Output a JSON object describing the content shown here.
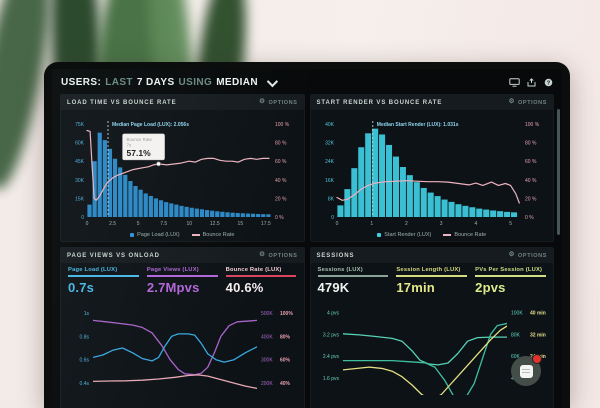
{
  "header": {
    "segments": [
      {
        "text": "USERS:"
      },
      {
        "text": "LAST"
      },
      {
        "text": "7 DAYS"
      },
      {
        "text": "USING"
      },
      {
        "text": "MEDIAN"
      }
    ]
  },
  "options_label": "OPTIONS",
  "gear_char": "⚙",
  "colors": {
    "dashboard_bg": "#07090b",
    "panel_bg": "#0d1216",
    "bar_blue": "#2f93d6",
    "bar_cyan": "#3ecfe3",
    "bounce_pink": "#edb3bf",
    "purple": "#b266d9",
    "yellow": "#e3e084",
    "teal": "#56d1b6",
    "red_badge": "#e3312e"
  },
  "metrics": {
    "pageviews": [
      {
        "label": "Page Load (LUX)",
        "value": "0.7s",
        "label_color": "#49b7e6",
        "value_color": "#49b7e6",
        "bar_color": "#49b7e6"
      },
      {
        "label": "Page Views (LUX)",
        "value": "2.7Mpvs",
        "label_color": "#b266d9",
        "value_color": "#b266d9",
        "bar_color": "#b266d9"
      },
      {
        "label": "Bounce Rate (LUX)",
        "value": "40.6%",
        "label_color": "#f3ccd4",
        "value_color": "#f6edef",
        "bar_color": "#d94560"
      }
    ],
    "sessions": [
      {
        "label": "Sessions (LUX)",
        "value": "479K",
        "label_color": "#a9bfb2",
        "value_color": "#eef4f0",
        "bar_color": "#8ba396"
      },
      {
        "label": "Session Length (LUX)",
        "value": "17min",
        "label_color": "#d6d97e",
        "value_color": "#e6e88a",
        "bar_color": "#d6d97e"
      },
      {
        "label": "PVs Per Session (LUX)",
        "value": "2pvs",
        "label_color": "#cfdd85",
        "value_color": "#dcea8c",
        "bar_color": "#cfdd85"
      }
    ]
  },
  "chart_data": [
    {
      "id": "load_time",
      "type": "bar+line",
      "title": "LOAD TIME VS BOUNCE RATE",
      "bar_color": "#2f93d6",
      "line_color": "#edb3bf",
      "axis_left_color": "#53aede",
      "axis_right_color": "#e79fb0",
      "x_start": 0,
      "x_step": 0.5,
      "x_max": 18,
      "bars_k": [
        10,
        45,
        68,
        62,
        55,
        47,
        40,
        34,
        29,
        25,
        22,
        19,
        17,
        15,
        13.5,
        12,
        11,
        10,
        9,
        8.2,
        7.5,
        6.8,
        6.2,
        5.6,
        5.1,
        4.6,
        4.2,
        3.8,
        3.5,
        3.2,
        3,
        2.8,
        2.6,
        2.4,
        2.3,
        2.2
      ],
      "line_pct": [
        [
          0,
          93
        ],
        [
          0.3,
          92
        ],
        [
          0.5,
          55
        ],
        [
          0.7,
          20
        ],
        [
          0.9,
          18
        ],
        [
          1.2,
          22
        ],
        [
          1.6,
          30
        ],
        [
          2,
          37
        ],
        [
          2.5,
          42
        ],
        [
          3,
          45
        ],
        [
          3.5,
          47
        ],
        [
          4,
          49
        ],
        [
          4.5,
          51
        ],
        [
          5,
          52
        ],
        [
          5.5,
          53
        ],
        [
          6,
          54
        ],
        [
          6.5,
          56
        ],
        [
          7,
          57.1
        ],
        [
          7.8,
          56
        ],
        [
          8.5,
          57
        ],
        [
          9.2,
          58
        ],
        [
          10,
          60
        ],
        [
          10.6,
          59
        ],
        [
          11.2,
          62
        ],
        [
          11.8,
          63
        ],
        [
          12.4,
          63
        ],
        [
          13,
          61
        ],
        [
          13.6,
          60
        ],
        [
          14.2,
          60
        ],
        [
          14.8,
          59
        ],
        [
          15.4,
          62
        ],
        [
          16,
          63
        ],
        [
          16.6,
          62
        ],
        [
          17.2,
          63
        ],
        [
          17.8,
          63
        ]
      ],
      "y_left_ticks": [
        "75K",
        "60K",
        "45K",
        "30K",
        "15K",
        "0"
      ],
      "y_left_max": 75,
      "y_right_ticks": [
        "100 %",
        "80 %",
        "60 %",
        "40 %",
        "20 %",
        "0 %"
      ],
      "x_ticks": [
        "0",
        "2.5",
        "5",
        "7.5",
        "10",
        "12.5",
        "15",
        "17.5"
      ],
      "median": {
        "x": 2.056,
        "label": "Median Page Load (LUX): 2.056s"
      },
      "tooltip": {
        "x": 7,
        "pct": 57.1,
        "label_lines": [
          "Bounce Rate",
          "7s"
        ],
        "value": "57.1%"
      },
      "legend": [
        {
          "label": "Page Load (LUX)",
          "color": "#2f93d6",
          "type": "square"
        },
        {
          "label": "Bounce Rate",
          "color": "#edb3bf",
          "type": "line"
        }
      ]
    },
    {
      "id": "start_render",
      "type": "bar+line",
      "title": "START RENDER VS BOUNCE RATE",
      "bar_color": "#3ecfe3",
      "line_color": "#edb3bf",
      "axis_left_color": "#4fc8dc",
      "axis_right_color": "#e79fb0",
      "x_start": 0,
      "x_step": 0.2,
      "x_max": 5.3,
      "bars_k": [
        5,
        12,
        21,
        30,
        36,
        38,
        35.5,
        31,
        26,
        21.5,
        18,
        15,
        12.5,
        10.5,
        9,
        7.5,
        6.5,
        5.5,
        4.8,
        4.2,
        3.6,
        3.2,
        2.8,
        2.5,
        2.2,
        2
      ],
      "line_pct": [
        [
          0,
          21
        ],
        [
          0.15,
          18
        ],
        [
          0.3,
          19
        ],
        [
          0.5,
          24
        ],
        [
          0.7,
          30
        ],
        [
          0.9,
          34
        ],
        [
          1.1,
          36.5
        ],
        [
          1.4,
          38
        ],
        [
          1.7,
          38.5
        ],
        [
          2,
          39
        ],
        [
          2.3,
          38.5
        ],
        [
          2.6,
          38
        ],
        [
          2.9,
          38
        ],
        [
          3.2,
          37.5
        ],
        [
          3.5,
          36
        ],
        [
          3.8,
          34.5
        ],
        [
          4,
          36.5
        ],
        [
          4.2,
          34
        ],
        [
          4.45,
          37.5
        ],
        [
          4.65,
          34
        ],
        [
          4.85,
          36
        ],
        [
          5,
          34
        ],
        [
          5.15,
          25
        ],
        [
          5.25,
          15
        ]
      ],
      "y_left_ticks": [
        "40K",
        "32K",
        "24K",
        "16K",
        "8K",
        "0"
      ],
      "y_left_max": 40,
      "y_right_ticks": [
        "100 %",
        "80 %",
        "60 %",
        "40 %",
        "20 %",
        "0 %"
      ],
      "x_ticks": [
        "0",
        "1",
        "2",
        "3",
        "4",
        "5"
      ],
      "median": {
        "x": 1.031,
        "label": "Median Start Render (LUX): 1.031s"
      },
      "tooltip": null,
      "legend": [
        {
          "label": "Start Render (LUX)",
          "color": "#3ecfe3",
          "type": "square"
        },
        {
          "label": "Bounce Rate",
          "color": "#edb3bf",
          "type": "line"
        }
      ]
    },
    {
      "id": "pageviews_onload",
      "type": "line",
      "title": "PAGE VIEWS VS ONLOAD",
      "left_axis": {
        "unit": "s",
        "color": "#4fb5e0",
        "range": [
          0.35,
          1.05
        ],
        "ticks": [
          1,
          0.8,
          0.6,
          0.4
        ],
        "labels": [
          "1s",
          "0.8s",
          "0.6s",
          "0.4s"
        ]
      },
      "right_axis_cols": [
        {
          "color": "#a769c9",
          "range": [
            175,
            525
          ],
          "ticks": [
            500,
            400,
            300,
            200
          ],
          "labels": [
            "500K",
            "400K",
            "300K",
            "200K"
          ]
        },
        {
          "color": "#e79fb0",
          "range": [
            35,
            105
          ],
          "ticks": [
            100,
            80,
            60,
            40
          ],
          "labels": [
            "100%",
            "80%",
            "60%",
            "40%"
          ]
        }
      ],
      "series": [
        {
          "name": "Page Views (LUX)",
          "unit": "K",
          "color": "#a863c8",
          "range": [
            175,
            525
          ],
          "points": [
            [
              0,
              468
            ],
            [
              0.08,
              462
            ],
            [
              0.16,
              455
            ],
            [
              0.24,
              448
            ],
            [
              0.3,
              438
            ],
            [
              0.36,
              415
            ],
            [
              0.42,
              360
            ],
            [
              0.47,
              300
            ],
            [
              0.52,
              258
            ],
            [
              0.56,
              240
            ],
            [
              0.62,
              236
            ],
            [
              0.66,
              242
            ],
            [
              0.7,
              268
            ],
            [
              0.74,
              330
            ],
            [
              0.78,
              400
            ],
            [
              0.83,
              445
            ],
            [
              0.88,
              462
            ],
            [
              1,
              468
            ]
          ]
        },
        {
          "name": "Page Load (LUX)",
          "unit": "s",
          "color": "#3aa7e0",
          "range": [
            0.35,
            1.05
          ],
          "points": [
            [
              0,
              0.62
            ],
            [
              0.06,
              0.64
            ],
            [
              0.12,
              0.68
            ],
            [
              0.18,
              0.7
            ],
            [
              0.24,
              0.66
            ],
            [
              0.3,
              0.61
            ],
            [
              0.36,
              0.59
            ],
            [
              0.4,
              0.62
            ],
            [
              0.44,
              0.72
            ],
            [
              0.48,
              0.8
            ],
            [
              0.52,
              0.82
            ],
            [
              0.58,
              0.82
            ],
            [
              0.62,
              0.81
            ],
            [
              0.66,
              0.74
            ],
            [
              0.7,
              0.65
            ],
            [
              0.75,
              0.6
            ],
            [
              0.8,
              0.58
            ],
            [
              0.86,
              0.6
            ],
            [
              0.93,
              0.66
            ],
            [
              1,
              0.71
            ]
          ]
        },
        {
          "name": "Bounce Rate (LUX)",
          "unit": "%",
          "color": "#e8a8b4",
          "range": [
            35,
            105
          ],
          "points": [
            [
              0,
              41.5
            ],
            [
              0.1,
              41.8
            ],
            [
              0.2,
              42
            ],
            [
              0.3,
              42.5
            ],
            [
              0.4,
              43.5
            ],
            [
              0.5,
              45
            ],
            [
              0.58,
              46.5
            ],
            [
              0.64,
              47
            ],
            [
              0.7,
              46
            ],
            [
              0.78,
              43
            ],
            [
              0.86,
              40
            ],
            [
              0.93,
              37.5
            ],
            [
              1,
              35.5
            ]
          ]
        }
      ]
    },
    {
      "id": "sessions",
      "type": "line",
      "title": "SESSIONS",
      "left_axis": {
        "unit": "pvs",
        "color": "#66d4b8",
        "range": [
          1.2,
          4.2
        ],
        "ticks": [
          4,
          3.2,
          2.4,
          1.6
        ],
        "labels": [
          "4 pvs",
          "3.2 pvs",
          "2.4 pvs",
          "1.6 pvs"
        ]
      },
      "right_axis_cols": [
        {
          "color": "#5fd3c0",
          "range": [
            30,
            105
          ],
          "ticks": [
            100,
            80,
            60,
            40
          ],
          "labels": [
            "100K",
            "80K",
            "60K",
            "40K"
          ]
        },
        {
          "color": "#e3e08a",
          "range": [
            12,
            42
          ],
          "ticks": [
            40,
            32,
            24
          ],
          "labels": [
            "40 min",
            "32 min",
            "24 min"
          ]
        }
      ],
      "series": [
        {
          "name": "PVs Per Session (LUX)",
          "unit": "pvs",
          "color": "#56d1b6",
          "range": [
            1.2,
            4.2
          ],
          "points": [
            [
              0,
              3.22
            ],
            [
              0.1,
              3.18
            ],
            [
              0.2,
              3.12
            ],
            [
              0.3,
              3.05
            ],
            [
              0.36,
              2.95
            ],
            [
              0.42,
              2.6
            ],
            [
              0.47,
              2.25
            ],
            [
              0.52,
              2.12
            ],
            [
              0.58,
              2.08
            ],
            [
              0.64,
              2.15
            ],
            [
              0.7,
              2.5
            ],
            [
              0.76,
              2.95
            ],
            [
              0.82,
              3.08
            ],
            [
              0.9,
              3.1
            ],
            [
              1,
              3.1
            ]
          ]
        },
        {
          "name": "Sessions (LUX)",
          "unit": "K",
          "color": "#3fbf9f",
          "range": [
            30,
            105
          ],
          "points": [
            [
              0,
              56
            ],
            [
              0.1,
              56
            ],
            [
              0.2,
              56
            ],
            [
              0.3,
              56
            ],
            [
              0.4,
              55
            ],
            [
              0.5,
              54
            ],
            [
              0.56,
              50
            ],
            [
              0.62,
              38
            ],
            [
              0.68,
              22
            ],
            [
              0.74,
              20
            ],
            [
              0.8,
              35
            ],
            [
              0.86,
              62
            ],
            [
              0.9,
              80
            ],
            [
              0.94,
              88
            ],
            [
              1,
              90
            ]
          ]
        },
        {
          "name": "Session Length (LUX)",
          "unit": "min",
          "color": "#e3e084",
          "range": [
            12,
            42
          ],
          "points": [
            [
              0,
              19
            ],
            [
              0.08,
              19.5
            ],
            [
              0.16,
              20
            ],
            [
              0.24,
              19.5
            ],
            [
              0.3,
              18.5
            ],
            [
              0.36,
              16.5
            ],
            [
              0.42,
              13.5
            ],
            [
              0.48,
              10
            ],
            [
              0.54,
              8
            ],
            [
              0.6,
              10
            ],
            [
              0.66,
              14
            ],
            [
              0.72,
              18
            ],
            [
              0.78,
              22
            ],
            [
              0.84,
              26
            ],
            [
              0.9,
              30
            ],
            [
              0.96,
              33.5
            ],
            [
              1,
              35
            ]
          ]
        }
      ]
    }
  ]
}
